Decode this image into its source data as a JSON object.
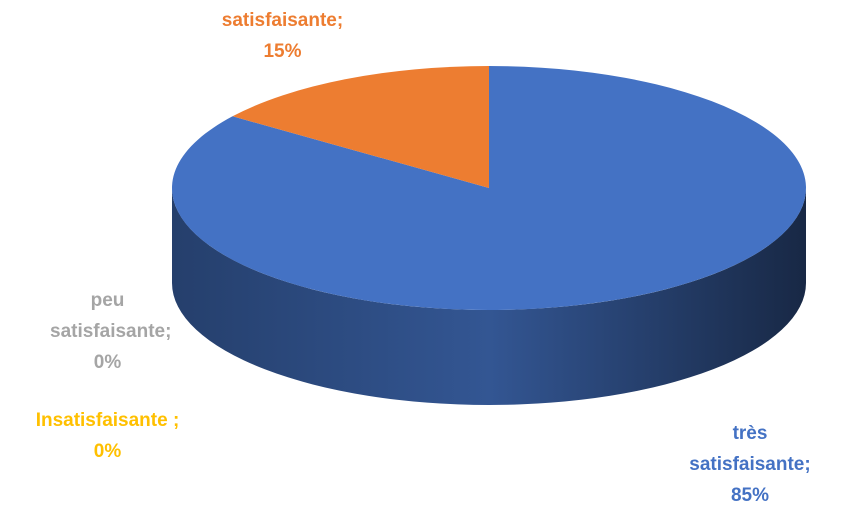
{
  "chart_data": {
    "type": "pie",
    "categories": [
      "très satisfaisante;",
      "Insatisfaisante ;",
      "peu satisfaisante;",
      "satisfaisante;"
    ],
    "values": [
      85,
      0,
      0,
      15
    ],
    "value_labels": [
      "85%",
      "0%",
      "0%",
      "15%"
    ],
    "colors": [
      "#4472c4",
      "#ffc000",
      "#a5a5a5",
      "#ed7d31"
    ]
  }
}
